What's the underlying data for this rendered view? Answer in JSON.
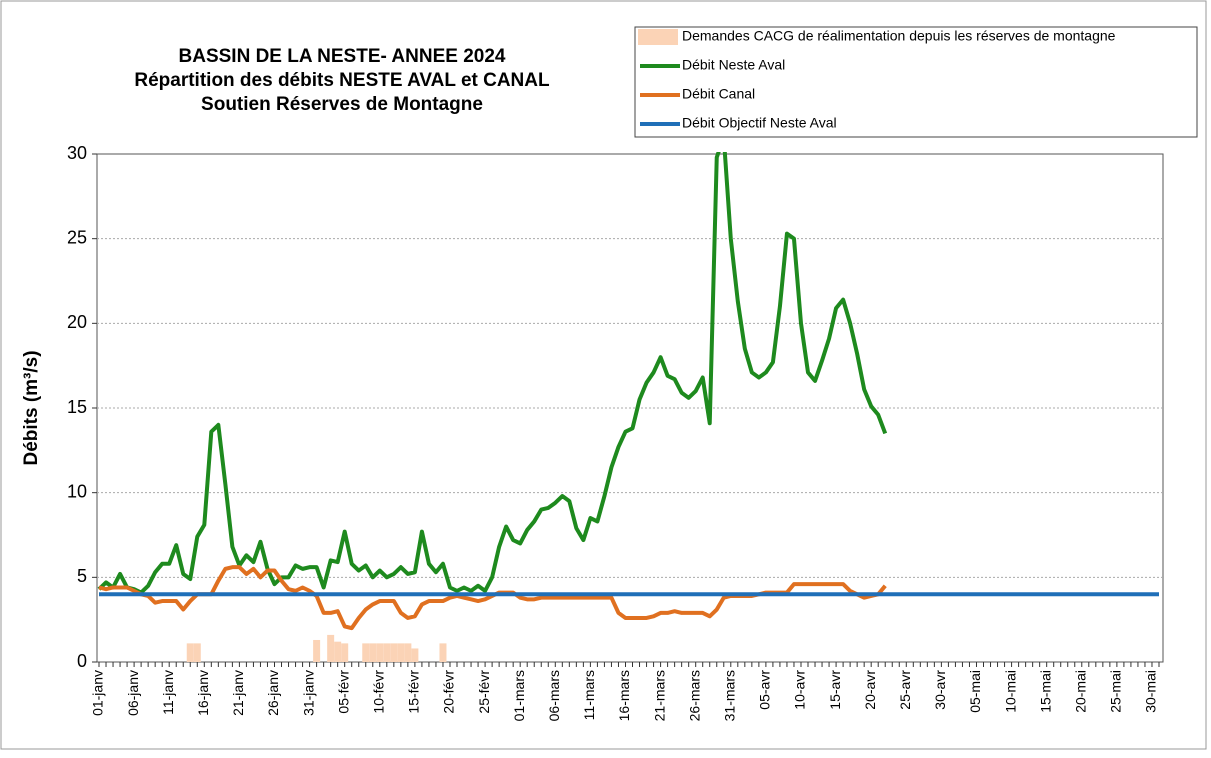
{
  "chart_data": {
    "type": "line",
    "title": [
      "BASSIN DE LA NESTE- ANNEE 2024",
      "Répartition des débits NESTE AVAL et CANAL",
      "Soutien Réserves de Montagne"
    ],
    "ylabel": "Débits (m³/s)",
    "ylim": [
      0,
      30
    ],
    "yticks": [
      0,
      5,
      10,
      15,
      20,
      25,
      30
    ],
    "grid": true,
    "categories": [
      "01-janv",
      null,
      null,
      null,
      null,
      "06-janv",
      null,
      null,
      null,
      null,
      "11-janv",
      null,
      null,
      null,
      null,
      "16-janv",
      null,
      null,
      null,
      null,
      "21-janv",
      null,
      null,
      null,
      null,
      "26-janv",
      null,
      null,
      null,
      null,
      "31-janv",
      null,
      null,
      null,
      null,
      "05-févr",
      null,
      null,
      null,
      null,
      "10-févr",
      null,
      null,
      null,
      null,
      "15-févr",
      null,
      null,
      null,
      null,
      "20-févr",
      null,
      null,
      null,
      null,
      "25-févr",
      null,
      null,
      null,
      null,
      "01-mars",
      null,
      null,
      null,
      null,
      "06-mars",
      null,
      null,
      null,
      null,
      "11-mars",
      null,
      null,
      null,
      null,
      "16-mars",
      null,
      null,
      null,
      null,
      "21-mars",
      null,
      null,
      null,
      null,
      "26-mars",
      null,
      null,
      null,
      null,
      "31-mars",
      null,
      null,
      null,
      null,
      "05-avr",
      null,
      null,
      null,
      null,
      "10-avr",
      null,
      null,
      null,
      null,
      "15-avr",
      null,
      null,
      null,
      null,
      "20-avr",
      null,
      null,
      null,
      null,
      "25-avr",
      null,
      null,
      null,
      null,
      "30-avr",
      null,
      null,
      null,
      null,
      "05-mai",
      null,
      null,
      null,
      null,
      "10-mai",
      null,
      null,
      null,
      null,
      "15-mai",
      null,
      null,
      null,
      null,
      "20-mai",
      null,
      null,
      null,
      null,
      "25-mai",
      null,
      null,
      null,
      null,
      "30-mai",
      null
    ],
    "series": [
      {
        "name": "Demandes CACG de réalimentation depuis les réserves de montagne",
        "type": "bar",
        "color": "#fbd3b6",
        "values": [
          null,
          null,
          null,
          null,
          null,
          null,
          null,
          null,
          null,
          null,
          null,
          null,
          null,
          1.1,
          1.1,
          null,
          null,
          null,
          null,
          null,
          null,
          null,
          null,
          null,
          null,
          null,
          null,
          null,
          null,
          null,
          null,
          1.3,
          null,
          1.6,
          1.2,
          1.1,
          null,
          null,
          1.1,
          1.1,
          1.1,
          1.1,
          1.1,
          1.1,
          1.1,
          0.8,
          null,
          null,
          null,
          1.1,
          null,
          null,
          null,
          null,
          null,
          null,
          null,
          null,
          null,
          null,
          null,
          null,
          null,
          null,
          null,
          null,
          null,
          null,
          null,
          null,
          null,
          null,
          null,
          null,
          null,
          null,
          null,
          null,
          null,
          null,
          null,
          null,
          null,
          null,
          null,
          null,
          null,
          null,
          null,
          null,
          null,
          null,
          null,
          null,
          null,
          null,
          null,
          null,
          null,
          null,
          null,
          null,
          null,
          null,
          null,
          null,
          null,
          null,
          null,
          null,
          null,
          null,
          null,
          null,
          null,
          null,
          null,
          null,
          null,
          null,
          null,
          null,
          null,
          null,
          null,
          null,
          null,
          null,
          null,
          null,
          null,
          null,
          null,
          null,
          null,
          null,
          null,
          null,
          null,
          null,
          null,
          null,
          null,
          null,
          null,
          null,
          null,
          null,
          null,
          null,
          null,
          null
        ]
      },
      {
        "name": "Débit Neste Aval",
        "color": "#1e8a1e",
        "values": [
          4.3,
          4.7,
          4.4,
          5.2,
          4.4,
          4.3,
          4.1,
          4.5,
          5.3,
          5.8,
          5.8,
          6.9,
          5.2,
          4.9,
          7.4,
          8.1,
          13.6,
          14.0,
          10.5,
          6.8,
          5.7,
          6.3,
          5.9,
          7.1,
          5.5,
          4.6,
          5.0,
          5.0,
          5.7,
          5.5,
          5.6,
          5.6,
          4.4,
          6.0,
          5.9,
          7.7,
          5.8,
          5.4,
          5.7,
          5.0,
          5.4,
          5.0,
          5.2,
          5.6,
          5.2,
          5.3,
          7.7,
          5.8,
          5.3,
          5.8,
          4.4,
          4.2,
          4.4,
          4.2,
          4.5,
          4.2,
          5.0,
          6.8,
          8.0,
          7.2,
          7.0,
          7.8,
          8.3,
          9.0,
          9.1,
          9.4,
          9.8,
          9.5,
          7.9,
          7.2,
          8.5,
          8.3,
          9.8,
          11.5,
          12.7,
          13.6,
          13.8,
          15.5,
          16.5,
          17.1,
          18.0,
          16.9,
          16.7,
          15.9,
          15.6,
          16.0,
          16.8,
          14.1,
          29.8,
          31.0,
          25.0,
          21.3,
          18.5,
          17.1,
          16.8,
          17.1,
          17.7,
          21.0,
          25.3,
          25.0,
          20.0,
          17.1,
          16.6,
          17.8,
          19.1,
          20.9,
          21.4,
          20.0,
          18.2,
          16.1,
          15.1,
          14.6,
          13.5,
          null,
          null,
          null,
          null,
          null,
          null,
          null,
          null,
          null,
          null,
          null,
          null,
          null,
          null,
          null,
          null,
          null,
          null,
          null,
          null,
          null,
          null,
          null,
          null,
          null,
          null,
          null,
          null,
          null,
          null,
          null,
          null,
          null,
          null,
          null,
          null,
          null,
          null,
          null
        ]
      },
      {
        "name": "Débit Canal",
        "color": "#e07020",
        "values": [
          4.4,
          4.3,
          4.4,
          4.4,
          4.4,
          4.2,
          4.0,
          3.9,
          3.5,
          3.6,
          3.6,
          3.6,
          3.1,
          3.6,
          4.0,
          4.0,
          4.0,
          4.8,
          5.5,
          5.6,
          5.6,
          5.2,
          5.5,
          5.0,
          5.4,
          5.4,
          4.8,
          4.3,
          4.2,
          4.4,
          4.2,
          3.9,
          2.9,
          2.9,
          3.0,
          2.1,
          2.0,
          2.6,
          3.1,
          3.4,
          3.6,
          3.6,
          3.6,
          2.9,
          2.6,
          2.7,
          3.4,
          3.6,
          3.6,
          3.6,
          3.8,
          3.9,
          3.8,
          3.7,
          3.6,
          3.7,
          3.9,
          4.1,
          4.1,
          4.1,
          3.8,
          3.7,
          3.7,
          3.8,
          3.8,
          3.8,
          3.8,
          3.8,
          3.8,
          3.8,
          3.8,
          3.8,
          3.8,
          3.8,
          2.9,
          2.6,
          2.6,
          2.6,
          2.6,
          2.7,
          2.9,
          2.9,
          3.0,
          2.9,
          2.9,
          2.9,
          2.9,
          2.7,
          3.1,
          3.8,
          3.9,
          3.9,
          3.9,
          3.9,
          4.0,
          4.1,
          4.1,
          4.1,
          4.1,
          4.6,
          4.6,
          4.6,
          4.6,
          4.6,
          4.6,
          4.6,
          4.6,
          4.2,
          4.0,
          3.8,
          3.9,
          4.0,
          4.5,
          null,
          null,
          null,
          null,
          null,
          null,
          null,
          null,
          null,
          null,
          null,
          null,
          null,
          null,
          null,
          null,
          null,
          null,
          null,
          null,
          null,
          null,
          null,
          null,
          null,
          null,
          null,
          null,
          null,
          null,
          null,
          null,
          null,
          null,
          null,
          null,
          null,
          null,
          null
        ]
      },
      {
        "name": "Débit Objectif Neste Aval",
        "color": "#1f6fb8",
        "values": [
          4,
          4,
          4,
          4,
          4,
          4,
          4,
          4,
          4,
          4,
          4,
          4,
          4,
          4,
          4,
          4,
          4,
          4,
          4,
          4,
          4,
          4,
          4,
          4,
          4,
          4,
          4,
          4,
          4,
          4,
          4,
          4,
          4,
          4,
          4,
          4,
          4,
          4,
          4,
          4,
          4,
          4,
          4,
          4,
          4,
          4,
          4,
          4,
          4,
          4,
          4,
          4,
          4,
          4,
          4,
          4,
          4,
          4,
          4,
          4,
          4,
          4,
          4,
          4,
          4,
          4,
          4,
          4,
          4,
          4,
          4,
          4,
          4,
          4,
          4,
          4,
          4,
          4,
          4,
          4,
          4,
          4,
          4,
          4,
          4,
          4,
          4,
          4,
          4,
          4,
          4,
          4,
          4,
          4,
          4,
          4,
          4,
          4,
          4,
          4,
          4,
          4,
          4,
          4,
          4,
          4,
          4,
          4,
          4,
          4,
          4,
          4,
          4,
          4,
          4,
          4,
          4,
          4,
          4,
          4,
          4,
          4,
          4,
          4,
          4,
          4,
          4,
          4,
          4,
          4,
          4,
          4,
          4,
          4,
          4,
          4,
          4,
          4,
          4,
          4,
          4,
          4,
          4,
          4,
          4,
          4,
          4,
          4,
          4,
          4,
          4,
          4
        ]
      }
    ]
  }
}
